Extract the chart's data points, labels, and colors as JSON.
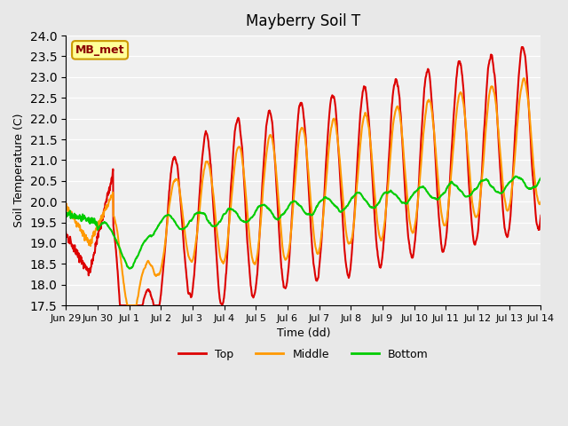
{
  "title": "Mayberry Soil T",
  "xlabel": "Time (dd)",
  "ylabel": "Soil Temperature (C)",
  "ylim": [
    17.5,
    24.0
  ],
  "yticks": [
    17.5,
    18.0,
    18.5,
    19.0,
    19.5,
    20.0,
    20.5,
    21.0,
    21.5,
    22.0,
    22.5,
    23.0,
    23.5,
    24.0
  ],
  "xtick_labels": [
    "Jun 29",
    "Jun 30",
    "Jul 1",
    "Jul 2",
    "Jul 3",
    "Jul 4",
    "Jul 5",
    "Jul 6",
    "Jul 7",
    "Jul 8",
    "Jul 9",
    "Jul 10",
    "Jul 11",
    "Jul 12",
    "Jul 13",
    "Jul 14"
  ],
  "line_colors": [
    "#dd0000",
    "#ff9900",
    "#00cc00"
  ],
  "line_labels": [
    "Top",
    "Middle",
    "Bottom"
  ],
  "line_width": 1.5,
  "bg_color": "#e8e8e8",
  "plot_bg_color": "#f0f0f0",
  "annotation_text": "MB_met",
  "annotation_box_color": "#ffff99",
  "annotation_box_edge": "#cc9900"
}
